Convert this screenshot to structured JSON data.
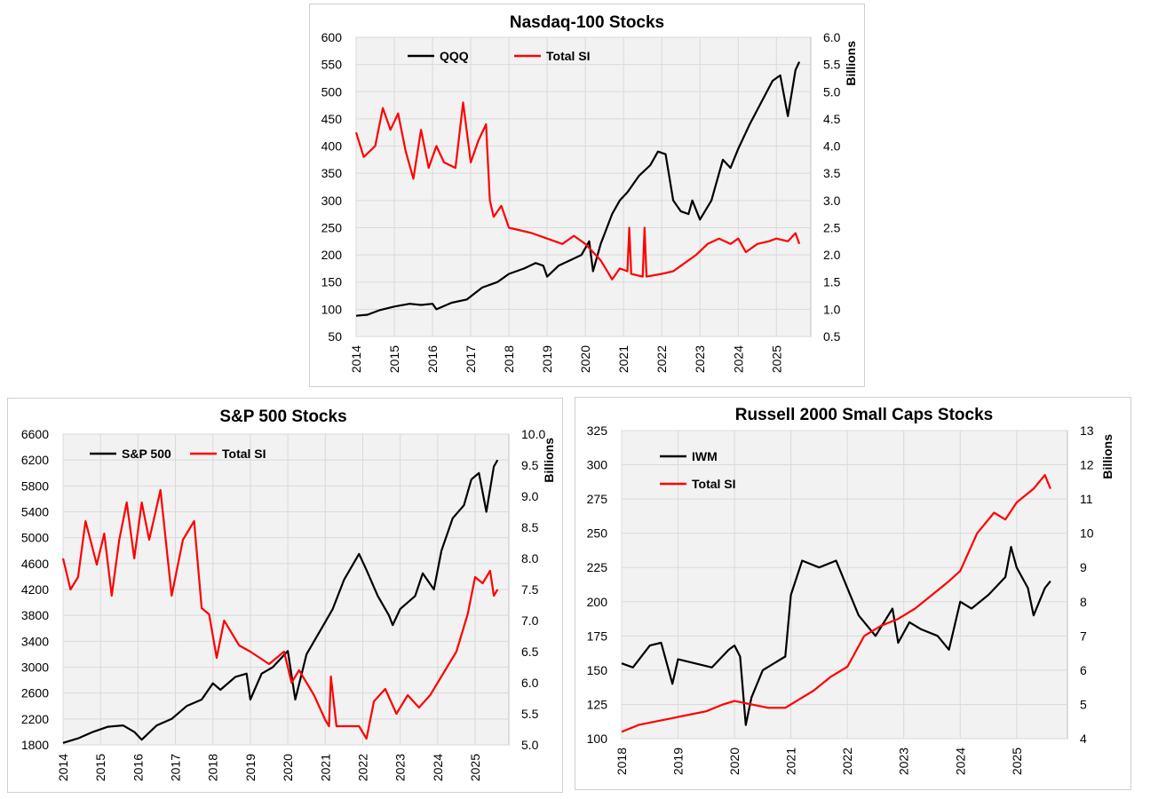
{
  "colors": {
    "black_series": "#000000",
    "red_series": "#ff0000",
    "plot_bg": "#f2f2f2",
    "grid": "#d9d9d9"
  },
  "chart_data": [
    {
      "id": "nasdaq",
      "type": "line",
      "title": "Nasdaq-100 Stocks",
      "xlabel": "",
      "ylabel": "",
      "y2label": "Billions",
      "xlim": [
        2014,
        2025.9
      ],
      "xticks": [
        "2014",
        "2015",
        "2016",
        "2017",
        "2018",
        "2019",
        "2020",
        "2021",
        "2022",
        "2023",
        "2024",
        "2025"
      ],
      "ylim": [
        50,
        600
      ],
      "yticks": [
        "50",
        "100",
        "150",
        "200",
        "250",
        "300",
        "350",
        "400",
        "450",
        "500",
        "550",
        "600"
      ],
      "y2lim": [
        0.5,
        6.0
      ],
      "y2ticks": [
        "0.5",
        "1.0",
        "1.5",
        "2.0",
        "2.5",
        "3.0",
        "3.5",
        "4.0",
        "4.5",
        "5.0",
        "5.5",
        "6.0"
      ],
      "legend": "top",
      "series": [
        {
          "name": "QQQ",
          "axis": "left",
          "color": "#000000",
          "x": [
            2014.0,
            2014.3,
            2014.6,
            2015.0,
            2015.4,
            2015.7,
            2016.0,
            2016.1,
            2016.5,
            2016.9,
            2017.3,
            2017.7,
            2018.0,
            2018.4,
            2018.7,
            2018.9,
            2019.0,
            2019.3,
            2019.6,
            2019.9,
            2020.1,
            2020.2,
            2020.4,
            2020.7,
            2020.9,
            2021.1,
            2021.4,
            2021.7,
            2021.9,
            2022.1,
            2022.3,
            2022.5,
            2022.7,
            2022.8,
            2023.0,
            2023.3,
            2023.6,
            2023.8,
            2024.0,
            2024.3,
            2024.6,
            2024.9,
            2025.1,
            2025.3,
            2025.5,
            2025.6
          ],
          "y": [
            88,
            90,
            98,
            105,
            110,
            108,
            110,
            100,
            112,
            118,
            140,
            150,
            165,
            175,
            185,
            180,
            160,
            180,
            190,
            200,
            225,
            170,
            220,
            275,
            300,
            315,
            345,
            365,
            390,
            385,
            300,
            280,
            275,
            300,
            265,
            300,
            375,
            360,
            395,
            440,
            480,
            520,
            530,
            455,
            540,
            555
          ]
        },
        {
          "name": "Total SI",
          "axis": "right",
          "color": "#ff0000",
          "x": [
            2014.0,
            2014.2,
            2014.5,
            2014.7,
            2014.9,
            2015.1,
            2015.3,
            2015.5,
            2015.7,
            2015.9,
            2016.1,
            2016.3,
            2016.6,
            2016.8,
            2017.0,
            2017.2,
            2017.4,
            2017.5,
            2017.6,
            2017.8,
            2018.0,
            2018.3,
            2018.6,
            2019.0,
            2019.4,
            2019.7,
            2020.0,
            2020.2,
            2020.4,
            2020.7,
            2020.9,
            2021.1,
            2021.15,
            2021.2,
            2021.5,
            2021.55,
            2021.6,
            2022.0,
            2022.3,
            2022.6,
            2022.9,
            2023.2,
            2023.5,
            2023.8,
            2024.0,
            2024.2,
            2024.5,
            2024.8,
            2025.0,
            2025.3,
            2025.5,
            2025.6
          ],
          "y": [
            4.25,
            3.8,
            4.0,
            4.7,
            4.3,
            4.6,
            3.9,
            3.4,
            4.3,
            3.6,
            4.0,
            3.7,
            3.6,
            4.8,
            3.7,
            4.1,
            4.4,
            3.0,
            2.7,
            2.9,
            2.5,
            2.45,
            2.4,
            2.3,
            2.2,
            2.35,
            2.2,
            2.05,
            1.9,
            1.55,
            1.75,
            1.7,
            2.5,
            1.65,
            1.6,
            2.5,
            1.6,
            1.65,
            1.7,
            1.85,
            2.0,
            2.2,
            2.3,
            2.2,
            2.3,
            2.05,
            2.2,
            2.25,
            2.3,
            2.25,
            2.4,
            2.2
          ]
        }
      ]
    },
    {
      "id": "sp500",
      "type": "line",
      "title": "S&P 500 Stocks",
      "xlabel": "",
      "ylabel": "",
      "y2label": "Billions",
      "xlim": [
        2014,
        2025.9
      ],
      "xticks": [
        "2014",
        "2015",
        "2016",
        "2017",
        "2018",
        "2019",
        "2020",
        "2021",
        "2022",
        "2023",
        "2024",
        "2025"
      ],
      "ylim": [
        1800,
        6600
      ],
      "yticks": [
        "1800",
        "2200",
        "2600",
        "3000",
        "3400",
        "3800",
        "4200",
        "4600",
        "5000",
        "5400",
        "5800",
        "6200",
        "6600"
      ],
      "y2lim": [
        5.0,
        10.0
      ],
      "y2ticks": [
        "5.0",
        "5.5",
        "6.0",
        "6.5",
        "7.0",
        "7.5",
        "8.0",
        "8.5",
        "9.0",
        "9.5",
        "10.0"
      ],
      "legend": "top",
      "series": [
        {
          "name": "S&P 500",
          "axis": "left",
          "color": "#000000",
          "x": [
            2014.0,
            2014.4,
            2014.8,
            2015.2,
            2015.6,
            2015.9,
            2016.1,
            2016.5,
            2016.9,
            2017.3,
            2017.7,
            2018.0,
            2018.2,
            2018.6,
            2018.9,
            2019.0,
            2019.3,
            2019.6,
            2020.0,
            2020.2,
            2020.5,
            2020.9,
            2021.2,
            2021.5,
            2021.9,
            2022.1,
            2022.4,
            2022.7,
            2022.8,
            2023.0,
            2023.4,
            2023.6,
            2023.9,
            2024.1,
            2024.4,
            2024.7,
            2024.9,
            2025.1,
            2025.3,
            2025.5,
            2025.6
          ],
          "y": [
            1830,
            1900,
            2000,
            2080,
            2100,
            2000,
            1880,
            2100,
            2200,
            2400,
            2500,
            2750,
            2650,
            2850,
            2900,
            2500,
            2900,
            3000,
            3250,
            2500,
            3200,
            3600,
            3900,
            4350,
            4750,
            4500,
            4100,
            3800,
            3650,
            3900,
            4100,
            4450,
            4200,
            4800,
            5300,
            5500,
            5900,
            6000,
            5400,
            6100,
            6200
          ]
        },
        {
          "name": "Total SI",
          "axis": "right",
          "color": "#ff0000",
          "x": [
            2014.0,
            2014.2,
            2014.4,
            2014.6,
            2014.9,
            2015.1,
            2015.3,
            2015.5,
            2015.7,
            2015.9,
            2016.1,
            2016.3,
            2016.6,
            2016.9,
            2017.2,
            2017.5,
            2017.7,
            2017.9,
            2018.1,
            2018.3,
            2018.7,
            2019.0,
            2019.5,
            2019.9,
            2020.1,
            2020.3,
            2020.7,
            2021.0,
            2021.1,
            2021.15,
            2021.3,
            2021.6,
            2021.9,
            2022.1,
            2022.3,
            2022.6,
            2022.9,
            2023.2,
            2023.5,
            2023.8,
            2024.2,
            2024.5,
            2024.8,
            2025.0,
            2025.2,
            2025.4,
            2025.5,
            2025.6
          ],
          "y": [
            8.0,
            7.5,
            7.7,
            8.6,
            7.9,
            8.4,
            7.4,
            8.3,
            8.9,
            8.0,
            8.9,
            8.3,
            9.1,
            7.4,
            8.3,
            8.6,
            7.2,
            7.1,
            6.4,
            7.0,
            6.6,
            6.5,
            6.3,
            6.5,
            6.0,
            6.2,
            5.8,
            5.4,
            5.3,
            6.1,
            5.3,
            5.3,
            5.3,
            5.1,
            5.7,
            5.9,
            5.5,
            5.8,
            5.6,
            5.8,
            6.2,
            6.5,
            7.1,
            7.7,
            7.6,
            7.8,
            7.4,
            7.5
          ]
        }
      ]
    },
    {
      "id": "russell",
      "type": "line",
      "title": "Russell 2000 Small Caps Stocks",
      "xlabel": "",
      "ylabel": "",
      "y2label": "Billions",
      "xlim": [
        2018,
        2025.9
      ],
      "xticks": [
        "2018",
        "2019",
        "2020",
        "2021",
        "2022",
        "2023",
        "2024",
        "2025"
      ],
      "ylim": [
        100,
        325
      ],
      "yticks": [
        "100",
        "125",
        "150",
        "175",
        "200",
        "225",
        "250",
        "275",
        "300",
        "325"
      ],
      "y2lim": [
        4,
        13
      ],
      "y2ticks": [
        "4",
        "5",
        "6",
        "7",
        "8",
        "9",
        "10",
        "11",
        "12",
        "13"
      ],
      "legend": "top-left",
      "series": [
        {
          "name": "IWM",
          "axis": "left",
          "color": "#000000",
          "x": [
            2018.0,
            2018.2,
            2018.5,
            2018.7,
            2018.9,
            2019.0,
            2019.3,
            2019.6,
            2019.9,
            2020.0,
            2020.1,
            2020.2,
            2020.3,
            2020.5,
            2020.7,
            2020.9,
            2021.0,
            2021.2,
            2021.5,
            2021.8,
            2022.0,
            2022.2,
            2022.5,
            2022.8,
            2022.9,
            2023.1,
            2023.3,
            2023.6,
            2023.8,
            2024.0,
            2024.2,
            2024.5,
            2024.8,
            2024.9,
            2025.0,
            2025.2,
            2025.3,
            2025.5,
            2025.6
          ],
          "y": [
            155,
            152,
            168,
            170,
            140,
            158,
            155,
            152,
            165,
            168,
            160,
            110,
            130,
            150,
            155,
            160,
            205,
            230,
            225,
            230,
            210,
            190,
            175,
            195,
            170,
            185,
            180,
            175,
            165,
            200,
            195,
            205,
            218,
            240,
            225,
            210,
            190,
            210,
            215
          ]
        },
        {
          "name": "Total SI",
          "axis": "right",
          "color": "#ff0000",
          "x": [
            2018.0,
            2018.3,
            2018.6,
            2018.9,
            2019.2,
            2019.5,
            2019.8,
            2020.0,
            2020.3,
            2020.6,
            2020.9,
            2021.1,
            2021.4,
            2021.7,
            2022.0,
            2022.3,
            2022.6,
            2022.9,
            2023.2,
            2023.5,
            2023.8,
            2024.0,
            2024.3,
            2024.6,
            2024.8,
            2025.0,
            2025.3,
            2025.5,
            2025.6
          ],
          "y": [
            4.2,
            4.4,
            4.5,
            4.6,
            4.7,
            4.8,
            5.0,
            5.1,
            5.0,
            4.9,
            4.9,
            5.1,
            5.4,
            5.8,
            6.1,
            7.0,
            7.3,
            7.5,
            7.8,
            8.2,
            8.6,
            8.9,
            10.0,
            10.6,
            10.4,
            10.9,
            11.3,
            11.7,
            11.3
          ]
        }
      ]
    }
  ]
}
